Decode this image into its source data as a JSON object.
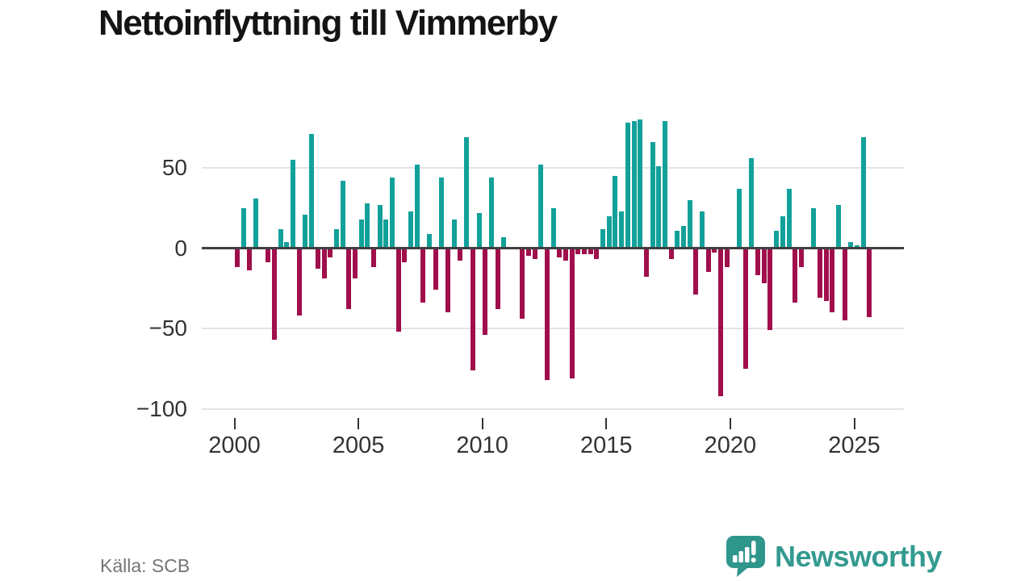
{
  "title": "Nettoinflyttning till Vimmerby",
  "source": "Källa: SCB",
  "brand": {
    "name": "Newsworthy",
    "color": "#349a90",
    "icon": "newsworthy-speech-bubble-bar-chart-logo",
    "icon_color": "#2f968c"
  },
  "chart_data": {
    "type": "bar",
    "title": "Nettoinflyttning till Vimmerby",
    "frequency": "quarterly",
    "start": "2000-Q1",
    "end": "2025-Q3",
    "values": [
      -12,
      25,
      -14,
      31,
      0,
      -9,
      -57,
      12,
      4,
      55,
      -42,
      21,
      71,
      -13,
      -19,
      -6,
      12,
      42,
      -38,
      -19,
      18,
      28,
      -12,
      27,
      18,
      44,
      -52,
      -9,
      23,
      52,
      -34,
      9,
      -26,
      44,
      -40,
      18,
      -8,
      69,
      -76,
      22,
      -54,
      44,
      -38,
      7,
      0,
      0,
      -44,
      -5,
      -7,
      52,
      -82,
      25,
      -6,
      -8,
      -81,
      -4,
      -4,
      -4,
      -7,
      12,
      20,
      45,
      23,
      78,
      79,
      80,
      -18,
      66,
      51,
      79,
      -7,
      11,
      14,
      30,
      -29,
      23,
      -15,
      -3,
      -92,
      -12,
      0,
      37,
      -75,
      56,
      -17,
      -22,
      -51,
      11,
      20,
      37,
      -34,
      -12,
      0,
      25,
      -31,
      -33,
      -40,
      27,
      -45,
      4,
      2,
      69,
      -43
    ],
    "yticks": [
      50,
      0,
      -50,
      -100
    ],
    "ytick_labels": [
      "50",
      "0",
      "−50",
      "−100"
    ],
    "xticks": [
      2000,
      2005,
      2010,
      2015,
      2020,
      2025
    ],
    "xtick_labels": [
      "2000",
      "2005",
      "2010",
      "2015",
      "2020",
      "2025"
    ],
    "ylim": [
      -100,
      85
    ],
    "grid": "horizontal",
    "legend": "none",
    "colors": {
      "positive": "#12a19a",
      "negative": "#a00f4c"
    }
  }
}
